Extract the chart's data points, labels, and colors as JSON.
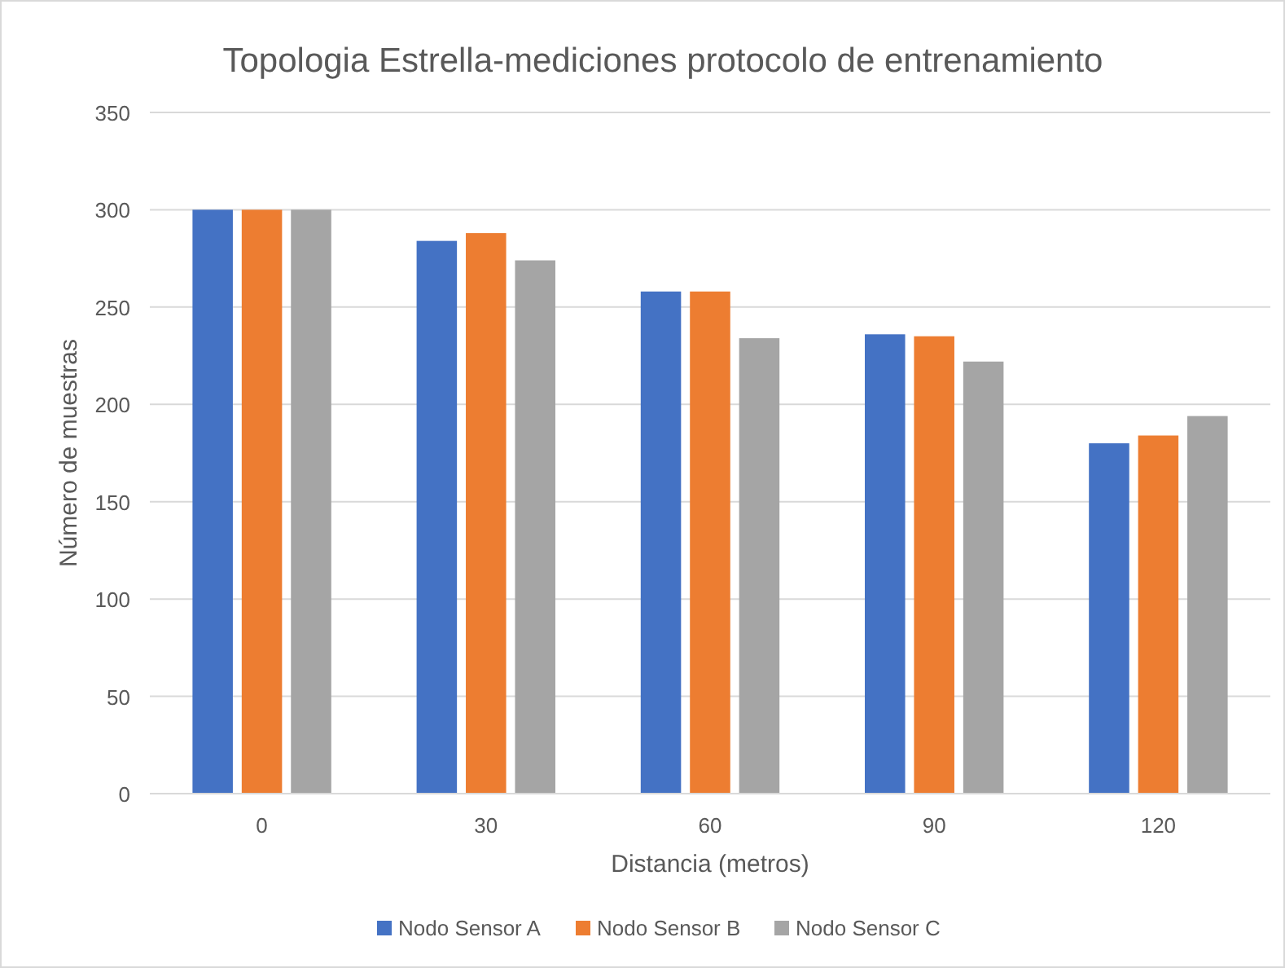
{
  "chart_data": {
    "type": "bar",
    "title": "Topologia Estrella-mediciones protocolo de entrenamiento",
    "xlabel": "Distancia (metros)",
    "ylabel": "Número de muestras",
    "categories": [
      "0",
      "30",
      "60",
      "90",
      "120"
    ],
    "series": [
      {
        "name": "Nodo Sensor A",
        "color": "#4472c4",
        "values": [
          300,
          284,
          258,
          236,
          180
        ]
      },
      {
        "name": "Nodo Sensor B",
        "color": "#ed7d31",
        "values": [
          300,
          288,
          258,
          235,
          184
        ]
      },
      {
        "name": "Nodo Sensor C",
        "color": "#a5a5a5",
        "values": [
          300,
          274,
          234,
          222,
          194
        ]
      }
    ],
    "ylim": [
      0,
      350
    ],
    "yticks": [
      0,
      50,
      100,
      150,
      200,
      250,
      300,
      350
    ],
    "grid": "y",
    "legend": "bottom"
  }
}
